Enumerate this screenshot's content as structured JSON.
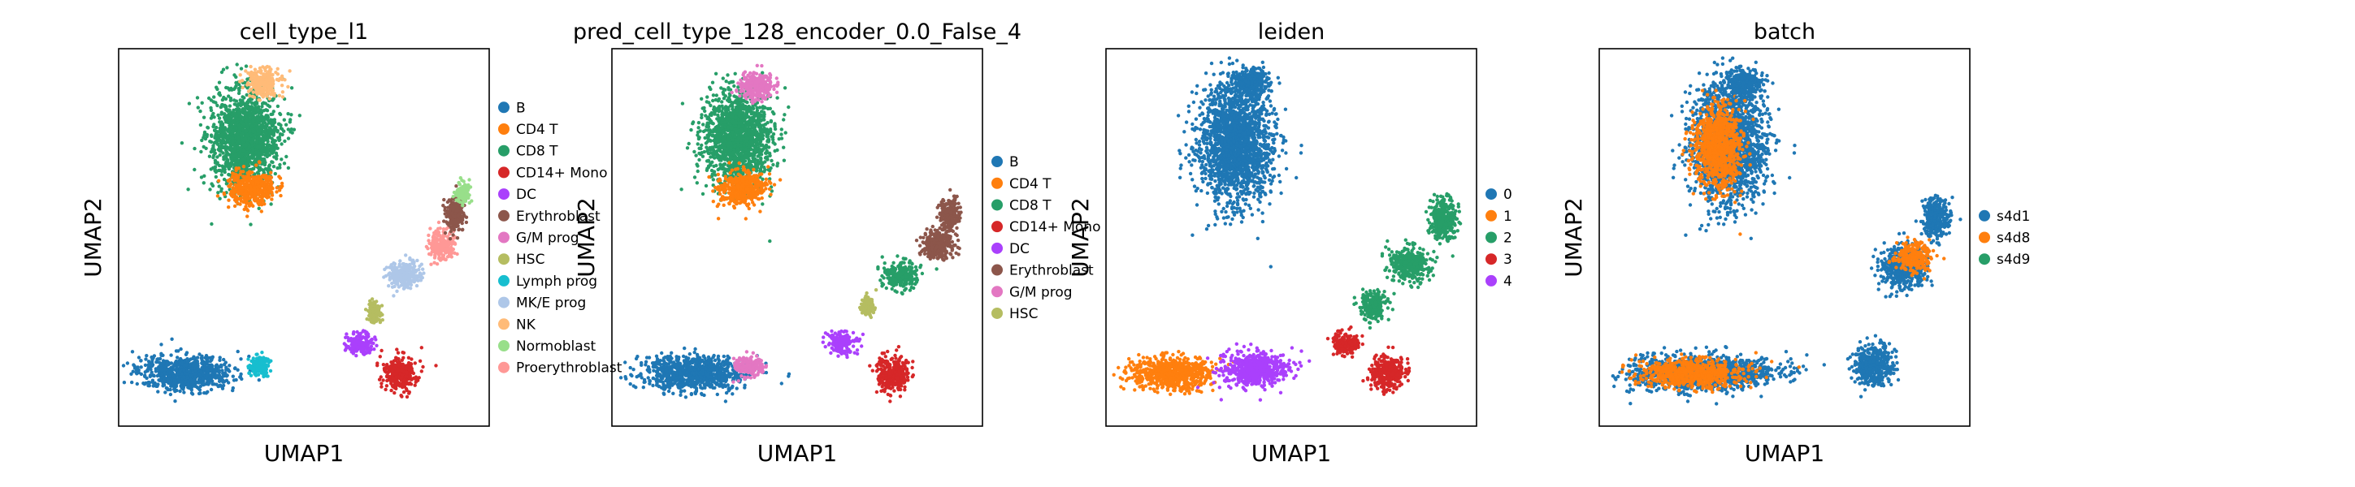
{
  "colors": {
    "B": "#1f77b4",
    "CD4 T": "#ff7f0e",
    "CD8 T": "#279e68",
    "CD14+ Mono": "#d62728",
    "DC": "#aa40fc",
    "Erythroblast": "#8c564b",
    "G/M prog": "#e377c2",
    "HSC": "#b5bd61",
    "Lymph prog": "#17becf",
    "MK/E prog": "#aec7e8",
    "NK": "#ffbb78",
    "Normoblast": "#98df8a",
    "Proerythroblast": "#ff9896",
    "0": "#1f77b4",
    "1": "#ff7f0e",
    "2": "#279e68",
    "3": "#d62728",
    "4": "#aa40fc",
    "s4d1": "#1f77b4",
    "s4d8": "#ff7f0e",
    "s4d9": "#279e68"
  },
  "chart_data": [
    {
      "type": "scatter",
      "title": "cell_type_l1",
      "xlabel": "UMAP1",
      "ylabel": "UMAP2",
      "legend_position": "right",
      "legend": [
        "B",
        "CD4 T",
        "CD8 T",
        "CD14+ Mono",
        "DC",
        "Erythroblast",
        "G/M prog",
        "HSC",
        "Lymph prog",
        "MK/E prog",
        "NK",
        "Normoblast",
        "Proerythroblast"
      ],
      "clusters": [
        {
          "label": "B",
          "cx": 0.18,
          "cy": 0.86,
          "rx": 0.14,
          "ry": 0.05
        },
        {
          "label": "Lymph prog",
          "cx": 0.38,
          "cy": 0.84,
          "rx": 0.03,
          "ry": 0.03
        },
        {
          "label": "CD8 T",
          "cx": 0.34,
          "cy": 0.24,
          "rx": 0.1,
          "ry": 0.14
        },
        {
          "label": "CD4 T",
          "cx": 0.36,
          "cy": 0.37,
          "rx": 0.07,
          "ry": 0.05
        },
        {
          "label": "NK",
          "cx": 0.39,
          "cy": 0.09,
          "rx": 0.05,
          "ry": 0.04
        },
        {
          "label": "CD14+ Mono",
          "cx": 0.76,
          "cy": 0.86,
          "rx": 0.05,
          "ry": 0.05
        },
        {
          "label": "DC",
          "cx": 0.65,
          "cy": 0.78,
          "rx": 0.04,
          "ry": 0.03
        },
        {
          "label": "HSC",
          "cx": 0.69,
          "cy": 0.7,
          "rx": 0.02,
          "ry": 0.03
        },
        {
          "label": "MK/E prog",
          "cx": 0.77,
          "cy": 0.6,
          "rx": 0.05,
          "ry": 0.04
        },
        {
          "label": "Proerythroblast",
          "cx": 0.87,
          "cy": 0.52,
          "rx": 0.04,
          "ry": 0.04
        },
        {
          "label": "Erythroblast",
          "cx": 0.91,
          "cy": 0.44,
          "rx": 0.03,
          "ry": 0.05
        },
        {
          "label": "Normoblast",
          "cx": 0.93,
          "cy": 0.38,
          "rx": 0.02,
          "ry": 0.03
        }
      ]
    },
    {
      "type": "scatter",
      "title": "pred_cell_type_128_encoder_0.0_False_4",
      "xlabel": "UMAP1",
      "ylabel": "UMAP2",
      "legend_position": "right",
      "legend": [
        "B",
        "CD4 T",
        "CD8 T",
        "CD14+ Mono",
        "DC",
        "Erythroblast",
        "G/M prog",
        "HSC"
      ],
      "clusters": [
        {
          "label": "B",
          "cx": 0.22,
          "cy": 0.86,
          "rx": 0.16,
          "ry": 0.05
        },
        {
          "label": "G/M prog",
          "cx": 0.37,
          "cy": 0.84,
          "rx": 0.04,
          "ry": 0.03
        },
        {
          "label": "CD8 T",
          "cx": 0.34,
          "cy": 0.24,
          "rx": 0.1,
          "ry": 0.14
        },
        {
          "label": "CD4 T",
          "cx": 0.35,
          "cy": 0.37,
          "rx": 0.07,
          "ry": 0.05
        },
        {
          "label": "G/M prog",
          "cx": 0.39,
          "cy": 0.1,
          "rx": 0.05,
          "ry": 0.04
        },
        {
          "label": "CD14+ Mono",
          "cx": 0.76,
          "cy": 0.86,
          "rx": 0.05,
          "ry": 0.05
        },
        {
          "label": "DC",
          "cx": 0.62,
          "cy": 0.78,
          "rx": 0.04,
          "ry": 0.03
        },
        {
          "label": "HSC",
          "cx": 0.69,
          "cy": 0.68,
          "rx": 0.02,
          "ry": 0.03
        },
        {
          "label": "CD8 T",
          "cx": 0.78,
          "cy": 0.6,
          "rx": 0.05,
          "ry": 0.04
        },
        {
          "label": "Erythroblast",
          "cx": 0.88,
          "cy": 0.52,
          "rx": 0.05,
          "ry": 0.04
        },
        {
          "label": "Erythroblast",
          "cx": 0.91,
          "cy": 0.44,
          "rx": 0.03,
          "ry": 0.05
        }
      ]
    },
    {
      "type": "scatter",
      "title": "leiden",
      "xlabel": "UMAP1",
      "ylabel": "UMAP2",
      "legend_position": "right",
      "legend": [
        "0",
        "1",
        "2",
        "3",
        "4"
      ],
      "clusters": [
        {
          "label": "0",
          "cx": 0.35,
          "cy": 0.25,
          "rx": 0.11,
          "ry": 0.17
        },
        {
          "label": "0",
          "cx": 0.39,
          "cy": 0.09,
          "rx": 0.05,
          "ry": 0.04
        },
        {
          "label": "1",
          "cx": 0.18,
          "cy": 0.86,
          "rx": 0.12,
          "ry": 0.05
        },
        {
          "label": "4",
          "cx": 0.4,
          "cy": 0.85,
          "rx": 0.1,
          "ry": 0.05
        },
        {
          "label": "3",
          "cx": 0.76,
          "cy": 0.86,
          "rx": 0.05,
          "ry": 0.05
        },
        {
          "label": "3",
          "cx": 0.65,
          "cy": 0.78,
          "rx": 0.04,
          "ry": 0.03
        },
        {
          "label": "2",
          "cx": 0.72,
          "cy": 0.68,
          "rx": 0.04,
          "ry": 0.04
        },
        {
          "label": "2",
          "cx": 0.82,
          "cy": 0.57,
          "rx": 0.06,
          "ry": 0.05
        },
        {
          "label": "2",
          "cx": 0.91,
          "cy": 0.45,
          "rx": 0.04,
          "ry": 0.06
        }
      ]
    },
    {
      "type": "scatter",
      "title": "batch",
      "xlabel": "UMAP1",
      "ylabel": "UMAP2",
      "legend_position": "right",
      "legend": [
        "s4d1",
        "s4d8",
        "s4d9"
      ],
      "clusters": [
        {
          "label": "s4d1",
          "cx": 0.35,
          "cy": 0.25,
          "rx": 0.11,
          "ry": 0.17
        },
        {
          "label": "s4d8",
          "cx": 0.32,
          "cy": 0.26,
          "rx": 0.07,
          "ry": 0.12
        },
        {
          "label": "s4d1",
          "cx": 0.39,
          "cy": 0.09,
          "rx": 0.05,
          "ry": 0.04
        },
        {
          "label": "s4d1",
          "cx": 0.28,
          "cy": 0.86,
          "rx": 0.22,
          "ry": 0.05
        },
        {
          "label": "s4d8",
          "cx": 0.25,
          "cy": 0.86,
          "rx": 0.15,
          "ry": 0.04
        },
        {
          "label": "s4d1",
          "cx": 0.74,
          "cy": 0.84,
          "rx": 0.06,
          "ry": 0.06
        },
        {
          "label": "s4d1",
          "cx": 0.82,
          "cy": 0.58,
          "rx": 0.07,
          "ry": 0.06
        },
        {
          "label": "s4d8",
          "cx": 0.85,
          "cy": 0.55,
          "rx": 0.05,
          "ry": 0.04
        },
        {
          "label": "s4d1",
          "cx": 0.91,
          "cy": 0.45,
          "rx": 0.04,
          "ry": 0.06
        }
      ]
    }
  ]
}
